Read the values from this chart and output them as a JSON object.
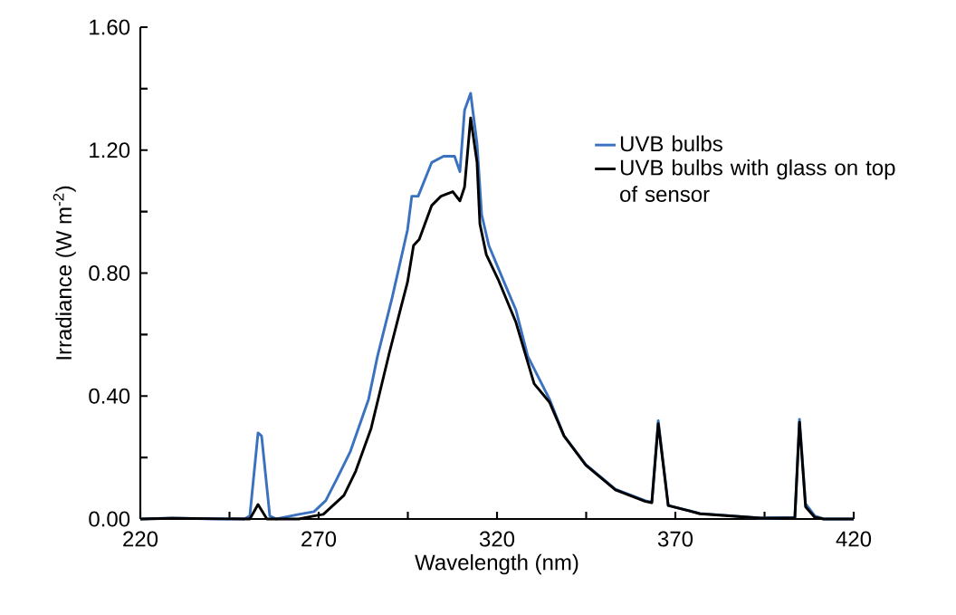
{
  "chart_data": {
    "type": "line",
    "xlabel": "Wavelength (nm)",
    "ylabel": "Irradiance (W m$^{-2}$)",
    "xlim": [
      220,
      420
    ],
    "ylim": [
      0,
      1.6
    ],
    "xticks": [
      220,
      {
        "value": 245,
        "label": null
      },
      270,
      {
        "value": 295,
        "label": null
      },
      320,
      {
        "value": 345,
        "label": null
      },
      370,
      {
        "value": 395,
        "label": null
      },
      420
    ],
    "yticks": [
      {
        "value": 0,
        "label": "0.00"
      },
      {
        "value": 0.2,
        "label": null
      },
      {
        "value": 0.4,
        "label": "0.40"
      },
      {
        "value": 0.6,
        "label": null
      },
      {
        "value": 0.8,
        "label": "0.80"
      },
      {
        "value": 1.0,
        "label": null
      },
      {
        "value": 1.2,
        "label": "1.20"
      },
      {
        "value": 1.4,
        "label": null
      },
      {
        "value": 1.6,
        "label": "1.60"
      }
    ],
    "grid": false,
    "legend": "right",
    "marker": "none",
    "line_style": "solid",
    "series": [
      {
        "name": "UVB bulbs",
        "color": "#3a72c0",
        "x": [
          220,
          228.9,
          241.6,
          249.2,
          250.7,
          253.0,
          254.0,
          256.3,
          258.1,
          264.4,
          268.7,
          272.0,
          275.3,
          278.9,
          284.0,
          286.5,
          290.6,
          294.9,
          296.1,
          297.9,
          301.7,
          305.0,
          308.1,
          309.6,
          310.9,
          312.6,
          314.4,
          315.7,
          317.7,
          322.0,
          325.3,
          328.6,
          334.7,
          338.8,
          344.9,
          353.2,
          361.6,
          363.4,
          365.2,
          368.0,
          376.9,
          393.9,
          403.5,
          404.8,
          406.5,
          409.1,
          411.6,
          420
        ],
        "values": [
          0,
          0.003,
          0,
          0,
          0.01,
          0.28,
          0.27,
          0.01,
          0,
          0.015,
          0.024,
          0.06,
          0.135,
          0.22,
          0.39,
          0.53,
          0.72,
          0.94,
          1.05,
          1.05,
          1.16,
          1.18,
          1.18,
          1.13,
          1.33,
          1.385,
          1.22,
          0.99,
          0.89,
          0.77,
          0.68,
          0.53,
          0.39,
          0.27,
          0.177,
          0.097,
          0.059,
          0.055,
          0.32,
          0.044,
          0.018,
          0.003,
          0.005,
          0.324,
          0.05,
          0.01,
          0,
          0
        ]
      },
      {
        "name": "UVB bulbs with glass on top of sensor",
        "color": "#000000",
        "x": [
          220,
          228.9,
          250.7,
          253.0,
          255.5,
          264.4,
          268.7,
          271.3,
          277.1,
          280.4,
          284.7,
          289.8,
          293.1,
          294.9,
          296.6,
          298.2,
          301.7,
          304.3,
          307.6,
          309.6,
          310.9,
          312.6,
          314.4,
          315.2,
          317.0,
          320.3,
          325.3,
          330.4,
          334.7,
          338.8,
          344.9,
          353.2,
          361.6,
          363.4,
          365.2,
          368.0,
          376.9,
          393.9,
          403.5,
          404.8,
          406.5,
          409.1,
          411.6,
          420
        ],
        "values": [
          0,
          0.002,
          0,
          0.047,
          0,
          0,
          0.01,
          0.015,
          0.077,
          0.156,
          0.295,
          0.54,
          0.69,
          0.77,
          0.89,
          0.91,
          1.02,
          1.05,
          1.065,
          1.035,
          1.08,
          1.305,
          1.16,
          0.96,
          0.86,
          0.78,
          0.64,
          0.44,
          0.38,
          0.27,
          0.175,
          0.095,
          0.057,
          0.053,
          0.31,
          0.044,
          0.017,
          0.003,
          0.004,
          0.315,
          0.04,
          0.005,
          0,
          0
        ]
      }
    ]
  }
}
